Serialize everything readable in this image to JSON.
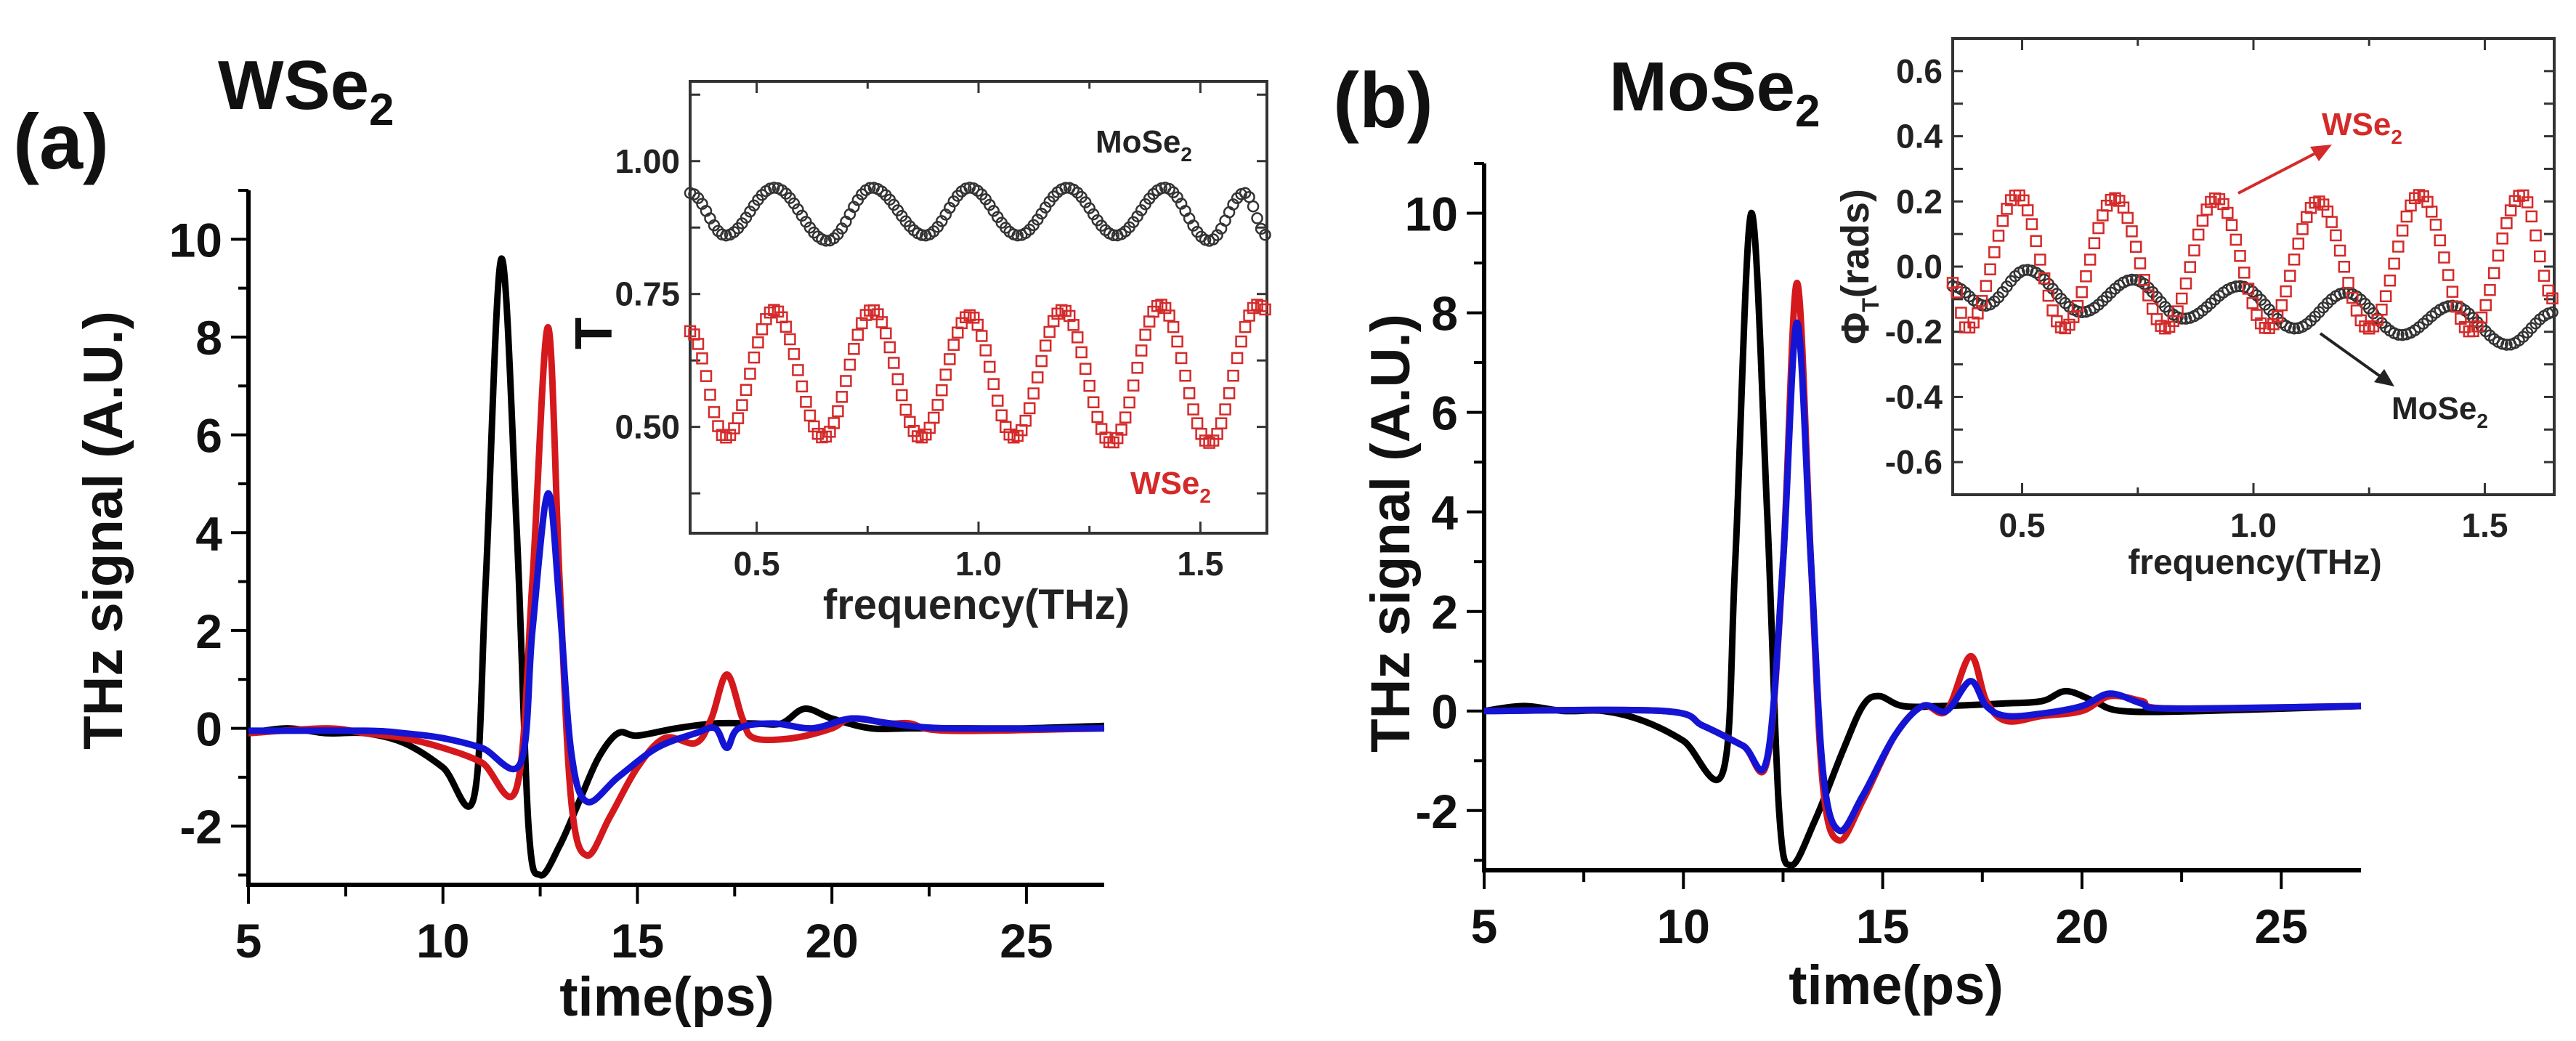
{
  "colors": {
    "black": "#000000",
    "red": "#d4181c",
    "blue": "#1414d4",
    "marker_black": "#333333",
    "marker_red": "#d42a2a"
  },
  "chart_data": [
    {
      "id": "a_main",
      "panel_label": "(a)",
      "material": {
        "base": "WSe",
        "sub": "2"
      },
      "type": "line",
      "xlabel": "time(ps)",
      "ylabel": "THz signal (A.U.)",
      "xlim": [
        5,
        27
      ],
      "ylim": [
        -3.2,
        11
      ],
      "xticks": [
        5,
        10,
        15,
        20,
        25
      ],
      "yticks": [
        -2,
        0,
        2,
        4,
        6,
        8,
        10
      ],
      "series": [
        {
          "name": "black",
          "color": "#000000",
          "points": [
            [
              5,
              -0.1
            ],
            [
              6,
              0
            ],
            [
              7,
              -0.1
            ],
            [
              8,
              -0.1
            ],
            [
              9,
              -0.3
            ],
            [
              10,
              -0.8
            ],
            [
              10.8,
              -1.4
            ],
            [
              11.1,
              3
            ],
            [
              11.5,
              9.6
            ],
            [
              11.9,
              4
            ],
            [
              12.2,
              -2
            ],
            [
              12.5,
              -3.0
            ],
            [
              13,
              -2.4
            ],
            [
              13.5,
              -1.5
            ],
            [
              14,
              -0.6
            ],
            [
              14.5,
              -0.1
            ],
            [
              15,
              -0.15
            ],
            [
              16,
              0
            ],
            [
              17,
              0.1
            ],
            [
              18,
              0.1
            ],
            [
              18.7,
              0.1
            ],
            [
              19.3,
              0.4
            ],
            [
              20,
              0.2
            ],
            [
              21,
              0
            ],
            [
              22,
              0
            ],
            [
              23,
              0
            ],
            [
              25,
              0
            ],
            [
              27,
              0.05
            ]
          ]
        },
        {
          "name": "red",
          "color": "#d4181c",
          "points": [
            [
              5,
              -0.1
            ],
            [
              7,
              0
            ],
            [
              8,
              -0.1
            ],
            [
              9,
              -0.2
            ],
            [
              10,
              -0.4
            ],
            [
              11,
              -0.7
            ],
            [
              11.9,
              -1.2
            ],
            [
              12.3,
              3
            ],
            [
              12.7,
              8.2
            ],
            [
              13.0,
              3
            ],
            [
              13.3,
              -1.5
            ],
            [
              13.7,
              -2.6
            ],
            [
              14.3,
              -1.8
            ],
            [
              15,
              -0.8
            ],
            [
              15.7,
              -0.2
            ],
            [
              16.5,
              -0.3
            ],
            [
              16.9,
              0.2
            ],
            [
              17.3,
              1.1
            ],
            [
              17.7,
              0.2
            ],
            [
              18,
              -0.2
            ],
            [
              19,
              -0.2
            ],
            [
              20,
              0
            ],
            [
              20.5,
              0.2
            ],
            [
              21.5,
              0.1
            ],
            [
              22,
              0.1
            ],
            [
              23,
              -0.05
            ],
            [
              27,
              0
            ]
          ]
        },
        {
          "name": "blue",
          "color": "#1414d4",
          "points": [
            [
              5,
              -0.05
            ],
            [
              8,
              -0.05
            ],
            [
              9,
              -0.1
            ],
            [
              10,
              -0.2
            ],
            [
              11,
              -0.4
            ],
            [
              12,
              -0.7
            ],
            [
              12.3,
              2
            ],
            [
              12.7,
              4.8
            ],
            [
              13.0,
              2.5
            ],
            [
              13.3,
              -0.5
            ],
            [
              13.7,
              -1.5
            ],
            [
              14.5,
              -1.0
            ],
            [
              15.5,
              -0.4
            ],
            [
              16.5,
              -0.1
            ],
            [
              17,
              0
            ],
            [
              17.3,
              -0.4
            ],
            [
              17.6,
              0
            ],
            [
              18.5,
              0.1
            ],
            [
              19.5,
              0
            ],
            [
              20.5,
              0.2
            ],
            [
              21.5,
              0.1
            ],
            [
              23,
              0
            ],
            [
              27,
              0
            ]
          ]
        }
      ]
    },
    {
      "id": "a_inset",
      "type": "scatter",
      "xlabel": "frequency(THz)",
      "ylabel": "T",
      "xlim": [
        0.35,
        1.65
      ],
      "ylim": [
        0.3,
        1.15
      ],
      "xticks": [
        0.5,
        1.0,
        1.5
      ],
      "yticks": [
        0.5,
        0.75,
        1.0
      ],
      "series": [
        {
          "name": "MoSe2",
          "label": {
            "base": "MoSe",
            "sub": "2"
          },
          "color": "#333333",
          "marker": "circle",
          "extrema": [
            [
              0.35,
              0.94
            ],
            [
              0.43,
              0.86
            ],
            [
              0.54,
              0.95
            ],
            [
              0.66,
              0.85
            ],
            [
              0.76,
              0.95
            ],
            [
              0.88,
              0.86
            ],
            [
              0.98,
              0.95
            ],
            [
              1.09,
              0.86
            ],
            [
              1.2,
              0.95
            ],
            [
              1.31,
              0.86
            ],
            [
              1.42,
              0.95
            ],
            [
              1.52,
              0.85
            ],
            [
              1.6,
              0.94
            ],
            [
              1.65,
              0.86
            ]
          ]
        },
        {
          "name": "WSe2",
          "label": {
            "base": "WSe",
            "sub": "2"
          },
          "color": "#d42a2a",
          "marker": "square",
          "extrema": [
            [
              0.35,
              0.68
            ],
            [
              0.43,
              0.48
            ],
            [
              0.54,
              0.72
            ],
            [
              0.65,
              0.48
            ],
            [
              0.76,
              0.72
            ],
            [
              0.87,
              0.48
            ],
            [
              0.98,
              0.71
            ],
            [
              1.08,
              0.48
            ],
            [
              1.19,
              0.72
            ],
            [
              1.3,
              0.47
            ],
            [
              1.41,
              0.73
            ],
            [
              1.52,
              0.47
            ],
            [
              1.63,
              0.73
            ],
            [
              1.65,
              0.72
            ]
          ]
        }
      ]
    },
    {
      "id": "b_main",
      "panel_label": "(b)",
      "material": {
        "base": "MoSe",
        "sub": "2"
      },
      "type": "line",
      "xlabel": "time(ps)",
      "ylabel": "THz signal (A.U.)",
      "xlim": [
        5,
        27
      ],
      "ylim": [
        -3.2,
        11
      ],
      "xticks": [
        5,
        10,
        15,
        20,
        25
      ],
      "yticks": [
        -2,
        0,
        2,
        4,
        6,
        8,
        10
      ],
      "series": [
        {
          "name": "black",
          "color": "#000000",
          "points": [
            [
              5,
              0
            ],
            [
              6,
              0.1
            ],
            [
              7,
              0
            ],
            [
              8,
              0
            ],
            [
              9,
              -0.2
            ],
            [
              10,
              -0.6
            ],
            [
              11,
              -1.2
            ],
            [
              11.3,
              3
            ],
            [
              11.7,
              10.0
            ],
            [
              12.1,
              4
            ],
            [
              12.4,
              -2
            ],
            [
              12.7,
              -3.1
            ],
            [
              13.3,
              -2.2
            ],
            [
              14,
              -0.8
            ],
            [
              14.5,
              0.1
            ],
            [
              14.9,
              0.3
            ],
            [
              15.5,
              0.1
            ],
            [
              16.5,
              0.1
            ],
            [
              18,
              0.15
            ],
            [
              19,
              0.2
            ],
            [
              19.6,
              0.4
            ],
            [
              20.3,
              0.2
            ],
            [
              21,
              0
            ],
            [
              23,
              0
            ],
            [
              27,
              0.1
            ]
          ]
        },
        {
          "name": "red",
          "color": "#d4181c",
          "points": [
            [
              5,
              0
            ],
            [
              9.5,
              0
            ],
            [
              10.5,
              -0.3
            ],
            [
              11.5,
              -0.7
            ],
            [
              12.1,
              -1.0
            ],
            [
              12.5,
              3
            ],
            [
              12.85,
              8.6
            ],
            [
              13.2,
              3
            ],
            [
              13.5,
              -1.5
            ],
            [
              13.9,
              -2.6
            ],
            [
              14.5,
              -1.8
            ],
            [
              15.3,
              -0.5
            ],
            [
              16,
              0.1
            ],
            [
              16.6,
              0
            ],
            [
              17.2,
              1.1
            ],
            [
              17.6,
              0.2
            ],
            [
              18.1,
              -0.2
            ],
            [
              19,
              -0.1
            ],
            [
              20,
              0
            ],
            [
              20.7,
              0.3
            ],
            [
              21.5,
              0.2
            ],
            [
              22.2,
              0.05
            ],
            [
              27,
              0.1
            ]
          ]
        },
        {
          "name": "blue",
          "color": "#1414d4",
          "points": [
            [
              5,
              0
            ],
            [
              9.5,
              0
            ],
            [
              10.5,
              -0.3
            ],
            [
              11.5,
              -0.7
            ],
            [
              12.1,
              -0.95
            ],
            [
              12.5,
              3
            ],
            [
              12.85,
              7.8
            ],
            [
              13.2,
              3
            ],
            [
              13.5,
              -1.2
            ],
            [
              13.9,
              -2.4
            ],
            [
              14.5,
              -1.7
            ],
            [
              15.3,
              -0.5
            ],
            [
              16,
              0.1
            ],
            [
              16.6,
              0
            ],
            [
              17.2,
              0.6
            ],
            [
              17.6,
              0.1
            ],
            [
              18.1,
              -0.1
            ],
            [
              19,
              -0.05
            ],
            [
              20,
              0.1
            ],
            [
              20.7,
              0.35
            ],
            [
              21.5,
              0.15
            ],
            [
              22.2,
              0.05
            ],
            [
              27,
              0.1
            ]
          ]
        }
      ]
    },
    {
      "id": "b_inset",
      "type": "scatter",
      "xlabel": "frequency(THz)",
      "ylabel": {
        "base": "Φ",
        "sub": "T",
        "rest": "(rads)"
      },
      "xlim": [
        0.35,
        1.65
      ],
      "ylim": [
        -0.7,
        0.7
      ],
      "xticks": [
        0.5,
        1.0,
        1.5
      ],
      "yticks": [
        -0.6,
        -0.4,
        -0.2,
        0.0,
        0.2,
        0.4,
        0.6
      ],
      "series": [
        {
          "name": "MoSe2",
          "label": {
            "base": "MoSe",
            "sub": "2"
          },
          "color": "#333333",
          "marker": "circle",
          "extrema": [
            [
              0.35,
              -0.06
            ],
            [
              0.42,
              -0.12
            ],
            [
              0.51,
              -0.01
            ],
            [
              0.63,
              -0.14
            ],
            [
              0.74,
              -0.04
            ],
            [
              0.85,
              -0.16
            ],
            [
              0.97,
              -0.06
            ],
            [
              1.09,
              -0.19
            ],
            [
              1.2,
              -0.08
            ],
            [
              1.32,
              -0.21
            ],
            [
              1.43,
              -0.12
            ],
            [
              1.55,
              -0.24
            ],
            [
              1.65,
              -0.14
            ]
          ]
        },
        {
          "name": "WSe2",
          "label": {
            "base": "WSe",
            "sub": "2"
          },
          "color": "#d42a2a",
          "marker": "square",
          "extrema": [
            [
              0.35,
              -0.05
            ],
            [
              0.38,
              -0.19
            ],
            [
              0.49,
              0.22
            ],
            [
              0.59,
              -0.19
            ],
            [
              0.7,
              0.21
            ],
            [
              0.81,
              -0.19
            ],
            [
              0.92,
              0.21
            ],
            [
              1.03,
              -0.19
            ],
            [
              1.14,
              0.2
            ],
            [
              1.25,
              -0.19
            ],
            [
              1.36,
              0.22
            ],
            [
              1.47,
              -0.2
            ],
            [
              1.58,
              0.22
            ],
            [
              1.65,
              -0.1
            ]
          ]
        }
      ]
    }
  ]
}
